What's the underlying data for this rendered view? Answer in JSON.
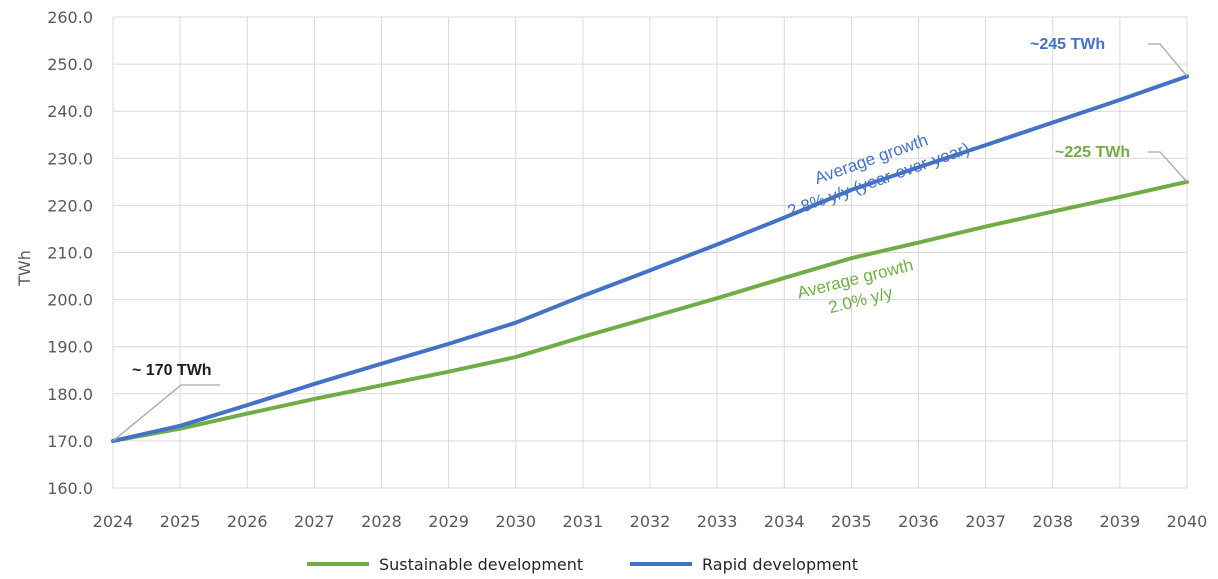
{
  "chart_data": {
    "type": "line",
    "title": "",
    "xlabel": "",
    "ylabel": "TWh",
    "x": [
      2024,
      2025,
      2026,
      2027,
      2028,
      2029,
      2030,
      2031,
      2032,
      2033,
      2034,
      2035,
      2036,
      2037,
      2038,
      2039,
      2040
    ],
    "xlim": [
      2024,
      2040
    ],
    "ylim": [
      160,
      260
    ],
    "y_ticks": [
      "160.0",
      "170.0",
      "180.0",
      "190.0",
      "200.0",
      "210.0",
      "220.0",
      "230.0",
      "240.0",
      "250.0",
      "260.0"
    ],
    "x_ticks": [
      "2024",
      "2025",
      "2026",
      "2027",
      "2028",
      "2029",
      "2030",
      "2031",
      "2032",
      "2033",
      "2034",
      "2035",
      "2036",
      "2037",
      "2038",
      "2039",
      "2040"
    ],
    "grid": true,
    "legend_position": "bottom",
    "series": [
      {
        "name": "Sustainable development",
        "color": "#70ad47",
        "values": [
          170.0,
          172.6,
          175.8,
          178.9,
          181.8,
          184.7,
          187.8,
          192.1,
          196.2,
          200.3,
          204.6,
          208.8,
          212.1,
          215.5,
          218.7,
          221.8,
          225.0
        ]
      },
      {
        "name": "Rapid development",
        "color": "#4472c4",
        "values": [
          170.0,
          173.2,
          177.6,
          182.1,
          186.4,
          190.6,
          195.1,
          200.8,
          206.2,
          211.7,
          217.4,
          223.3,
          228.1,
          232.8,
          237.6,
          242.4,
          247.4
        ]
      }
    ],
    "annotations": {
      "start": "~ 170 TWh",
      "rapid_end": "~245 TWh",
      "sustainable_end": "~225 TWh",
      "rapid_growth_line1": "Average growth",
      "rapid_growth_line2": "2.8% y/y (year-over-year)",
      "sustainable_growth_line1": "Average growth",
      "sustainable_growth_line2": "2.0% y/y"
    },
    "annotation_colors": {
      "rapid": "#4472c4",
      "sustainable": "#70ad47",
      "start": "#1f1f1f",
      "leader": "#a6a6a6"
    }
  }
}
